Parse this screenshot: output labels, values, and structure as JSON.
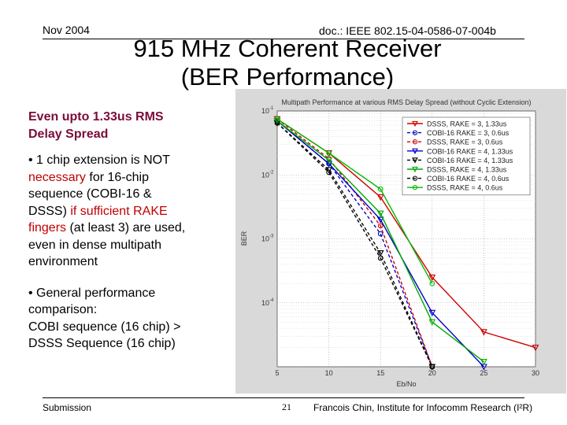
{
  "header": {
    "date": "Nov 2004",
    "doc": "doc.: IEEE 802.15-04-0586-07-004b"
  },
  "title": {
    "line1": "915 MHz Coherent Receiver",
    "line2": "(BER Performance)"
  },
  "left": {
    "subtitle1": "Even upto 1.33us RMS",
    "subtitle2": "Delay Spread",
    "b1_l1": "• 1 chip extension is NOT",
    "b1_l2a": "necessary",
    "b1_l2b": " for 16-chip",
    "b1_l3": "sequence (COBI-16 &",
    "b1_l4a": "DSSS) ",
    "b1_l4b": "if sufficient RAKE",
    "b1_l5a": "fingers",
    "b1_l5b": " (at least 3) are used,",
    "b1_l6": "even in dense multipath",
    "b1_l7": "environment",
    "b2_l1": "• General performance",
    "b2_l2": "comparison:",
    "b2_l3": "COBI sequence (16 chip) >",
    "b2_l4": "DSSS Sequence (16 chip)"
  },
  "footer": {
    "left": "Submission",
    "page": "21",
    "right": "Francois Chin, Institute for Infocomm Research (I²R)"
  },
  "chart_data": {
    "type": "line",
    "title": "Multipath Performance at various RMS Delay Spread (without Cyclic Extension)",
    "xlabel": "Eb/No",
    "ylabel": "BER",
    "xlim": [
      5,
      30
    ],
    "ylim_exp": [
      -5,
      -1
    ],
    "xticks": [
      "5",
      "10",
      "15",
      "20",
      "25",
      "30"
    ],
    "yticks": [
      {
        "base": "10",
        "exp": "-1"
      },
      {
        "base": "10",
        "exp": "-2"
      },
      {
        "base": "10",
        "exp": "-3"
      },
      {
        "base": "10",
        "exp": "-4"
      }
    ],
    "series": [
      {
        "name": "DSSS, RAKE = 3, 1.33us",
        "color": "#d00000",
        "marker": "down",
        "dash": "",
        "x": [
          5,
          10,
          15,
          20,
          25,
          30
        ],
        "y": [
          0.075,
          0.022,
          0.0045,
          0.00025,
          3.5e-05,
          2e-05
        ]
      },
      {
        "name": "COBI-16 RAKE = 3, 0.6us",
        "color": "#0000cc",
        "marker": "circle",
        "dash": "4,3",
        "x": [
          5,
          10,
          15,
          20
        ],
        "y": [
          0.07,
          0.015,
          0.0012,
          1e-05
        ]
      },
      {
        "name": "DSSS, RAKE = 3, 0.6us",
        "color": "#d00000",
        "marker": "circle",
        "dash": "4,3",
        "x": [
          5,
          10,
          15,
          20
        ],
        "y": [
          0.075,
          0.018,
          0.0016,
          1e-05
        ]
      },
      {
        "name": "COBI-16 RAKE = 4, 1.33us",
        "color": "#0000cc",
        "marker": "down",
        "dash": "",
        "x": [
          5,
          10,
          15,
          20,
          25
        ],
        "y": [
          0.07,
          0.015,
          0.002,
          7e-05,
          1e-05
        ]
      },
      {
        "name": "COBI-16 RAKE = 4, 1.33us",
        "color": "#000000",
        "marker": "down",
        "dash": "4,3",
        "x": [
          5,
          10,
          15,
          20
        ],
        "y": [
          0.065,
          0.012,
          0.0006,
          1e-05
        ]
      },
      {
        "name": "DSSS, RAKE = 4, 1.33us",
        "color": "#00aa00",
        "marker": "down",
        "dash": "",
        "x": [
          5,
          10,
          15,
          20,
          25
        ],
        "y": [
          0.07,
          0.017,
          0.0025,
          5e-05,
          1.2e-05
        ]
      },
      {
        "name": "COBI-16 RAKE = 4, 0.6us",
        "color": "#000000",
        "marker": "circle",
        "dash": "4,3",
        "x": [
          5,
          10,
          15,
          20
        ],
        "y": [
          0.065,
          0.011,
          0.0005,
          1e-05
        ]
      },
      {
        "name": "DSSS, RAKE = 4, 0.6us",
        "color": "#00bb00",
        "marker": "circle",
        "dash": "",
        "x": [
          5,
          10,
          15,
          20
        ],
        "y": [
          0.075,
          0.022,
          0.006,
          0.0002
        ]
      }
    ]
  }
}
